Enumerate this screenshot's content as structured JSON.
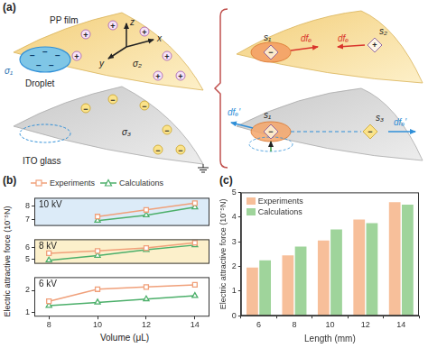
{
  "chart_data": [
    {
      "type": "line",
      "title": "(b)",
      "legend": "upper left",
      "grid": false,
      "tick_labels": "y",
      "annotations": [
        "10 kV"
      ],
      "x": [
        8,
        10,
        12,
        14
      ],
      "xlim": [
        7.4,
        14.6
      ],
      "xticks": [
        8,
        10,
        12,
        14
      ],
      "ylim": [
        6.5,
        8.6
      ],
      "yticks": [
        7,
        8
      ],
      "series": [
        {
          "name": "Experiments",
          "color": "#f0a07a",
          "marker": "square",
          "values": [
            null,
            7.2,
            7.7,
            8.2
          ]
        },
        {
          "name": "Calculations",
          "color": "#4caf6a",
          "marker": "triangle",
          "values": [
            null,
            6.9,
            7.3,
            7.9
          ]
        }
      ]
    },
    {
      "type": "line",
      "ylabel": "Electric attractive force (10⁻⁵N)",
      "grid": false,
      "tick_labels": "y",
      "annotations": [
        "8 kV"
      ],
      "x": [
        8,
        10,
        12,
        14
      ],
      "xlim": [
        7.4,
        14.6
      ],
      "xticks": [
        8,
        10,
        12,
        14
      ],
      "ylim": [
        4.6,
        6.7
      ],
      "yticks": [
        5,
        6
      ],
      "series": [
        {
          "color": "#f0a07a",
          "marker": "square",
          "values": [
            5.5,
            5.7,
            5.95,
            6.4
          ]
        },
        {
          "color": "#4caf6a",
          "marker": "triangle",
          "values": [
            4.9,
            5.3,
            5.8,
            6.2
          ]
        }
      ]
    },
    {
      "type": "line",
      "xlabel": "Volume (μL)",
      "grid": false,
      "annotations": [
        "6 kV"
      ],
      "x": [
        8,
        10,
        12,
        14
      ],
      "xlim": [
        7.4,
        14.6
      ],
      "xticks": [
        8,
        10,
        12,
        14
      ],
      "ylim": [
        0.8,
        2.6
      ],
      "yticks": [
        1,
        2
      ],
      "series": [
        {
          "color": "#f0a07a",
          "marker": "square",
          "values": [
            1.5,
            2.05,
            2.15,
            2.25
          ]
        },
        {
          "color": "#4caf6a",
          "marker": "triangle",
          "values": [
            1.3,
            1.45,
            1.6,
            1.75
          ]
        }
      ]
    },
    {
      "type": "bar",
      "title": "(c)",
      "legend": "upper left",
      "grid": false,
      "xlabel": "Length (mm)",
      "ylabel": "Electric attractive force (10⁻⁵N)",
      "categories": [
        "6",
        "8",
        "10",
        "12",
        "14"
      ],
      "ylim": [
        0,
        5
      ],
      "yticks": [
        0,
        1,
        2,
        3,
        4,
        5
      ],
      "series": [
        {
          "name": "Experiments",
          "color": "#f7bf9a",
          "values": [
            1.95,
            2.45,
            3.05,
            3.9,
            4.6
          ]
        },
        {
          "name": "Calculations",
          "color": "#9fd49b",
          "values": [
            2.25,
            2.8,
            3.5,
            3.75,
            4.5
          ]
        }
      ]
    }
  ],
  "diagram": {
    "panel": "(a)",
    "labels": {
      "film": "PP film",
      "droplet": "Droplet",
      "glass": "ITO glass",
      "axis_x": "x",
      "axis_y": "y",
      "axis_z": "z",
      "sigma_droplet": "σ₁",
      "sigma_film": "σ₂",
      "sigma_glass": "σ₃",
      "site_1": "s₁",
      "site_2": "s₂",
      "site_3": "s₃",
      "force_film": "dfₑ",
      "force_glass": "dfₑ′"
    },
    "charge_signs": {
      "positive": "+",
      "negative": "−"
    }
  }
}
